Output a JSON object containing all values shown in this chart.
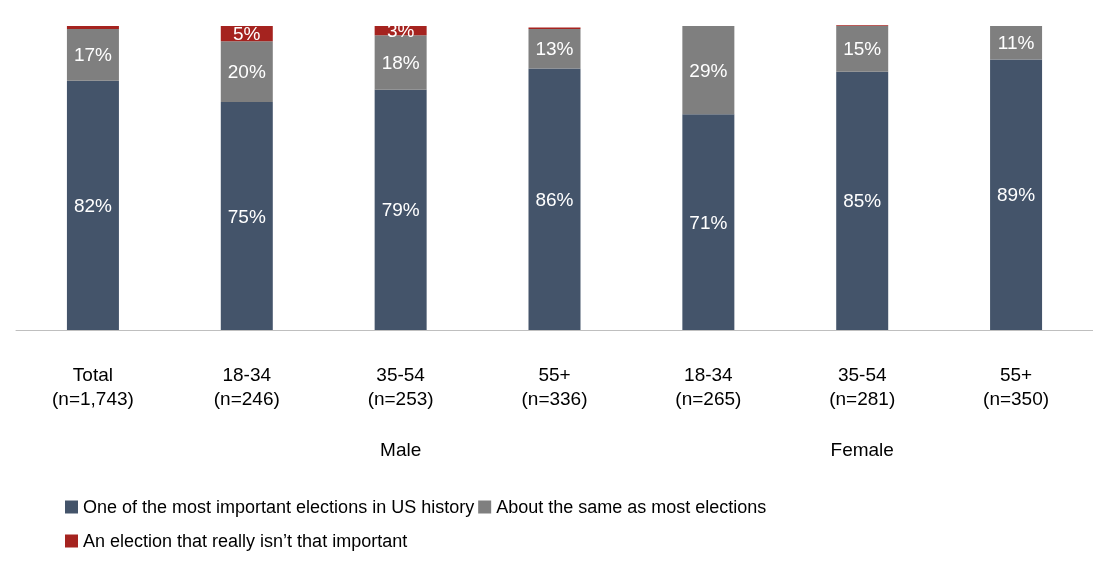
{
  "chart_data": {
    "type": "bar",
    "stacked": true,
    "categories": [
      "Total\n(n=1,743)",
      "18-34\n(n=246)",
      "35-54\n(n=253)",
      "55+\n(n=336)",
      "18-34\n(n=265)",
      "35-54\n(n=281)",
      "55+\n(n=350)"
    ],
    "ylim": [
      0,
      101
    ],
    "tick_labels": "x",
    "legend": "bottom left",
    "annotations": [
      "Male",
      "Female"
    ],
    "series": [
      {
        "name": "One of the most important elections in US history",
        "color": "#44546a",
        "values": [
          82,
          75,
          79,
          86,
          71,
          85,
          89
        ],
        "value_labels": [
          "82%",
          "75%",
          "79%",
          "86%",
          "71%",
          "85%",
          "89%"
        ]
      },
      {
        "name": "About the same as most elections",
        "color": "#7f7f7f",
        "values": [
          17,
          20,
          18,
          13,
          29,
          15,
          11
        ],
        "value_labels": [
          "17%",
          "20%",
          "18%",
          "13%",
          "29%",
          "15%",
          "11%"
        ]
      },
      {
        "name": "An election that really isn’t that important",
        "color": "#a5231f",
        "values": [
          1,
          5,
          3,
          0.5,
          0,
          0.3,
          0
        ],
        "value_labels": [
          null,
          "5%",
          "3%",
          null,
          null,
          null,
          null
        ]
      }
    ]
  }
}
